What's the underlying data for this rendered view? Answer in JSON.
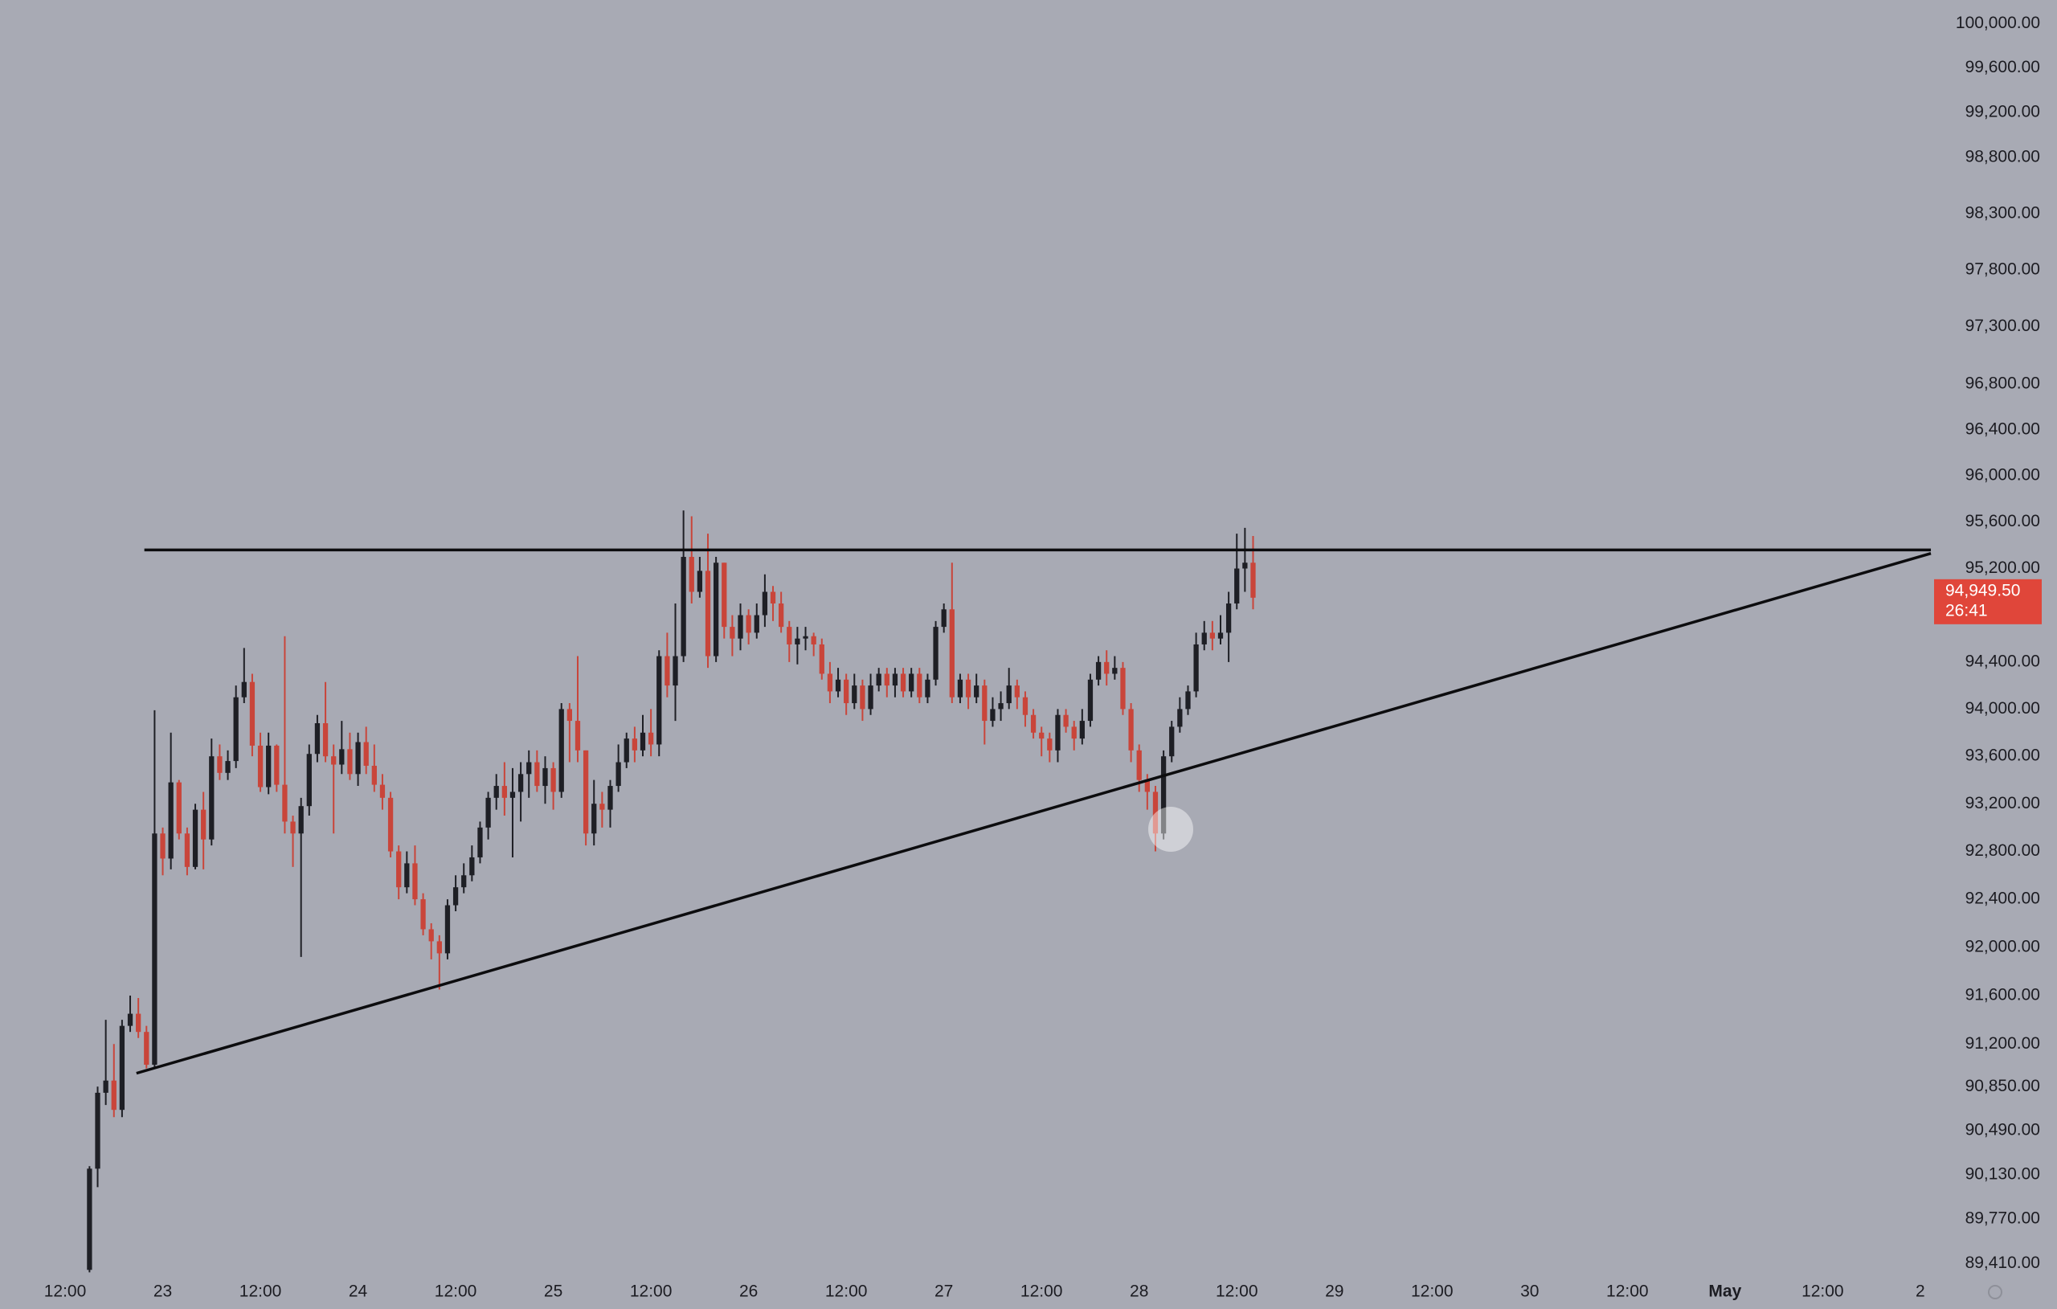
{
  "chart_data": {
    "type": "candlestick",
    "yscale": "log",
    "up_color": "#1e1f25",
    "down_color": "#c9453a",
    "line_color": "#0c0c0e",
    "background": "#a8aab4",
    "price_label": "94,949.50",
    "countdown": "26:41",
    "price_label_color": "#e0463a",
    "xlim": [
      -11,
      226
    ],
    "ylim": [
      89336,
      100213
    ],
    "xticks": [
      {
        "value": -3,
        "label": "12:00"
      },
      {
        "value": 9,
        "label": "23"
      },
      {
        "value": 21,
        "label": "12:00"
      },
      {
        "value": 33,
        "label": "24"
      },
      {
        "value": 45,
        "label": "12:00"
      },
      {
        "value": 57,
        "label": "25"
      },
      {
        "value": 69,
        "label": "12:00"
      },
      {
        "value": 81,
        "label": "26"
      },
      {
        "value": 93,
        "label": "12:00"
      },
      {
        "value": 105,
        "label": "27"
      },
      {
        "value": 117,
        "label": "12:00"
      },
      {
        "value": 129,
        "label": "28"
      },
      {
        "value": 141,
        "label": "12:00"
      },
      {
        "value": 153,
        "label": "29"
      },
      {
        "value": 165,
        "label": "12:00"
      },
      {
        "value": 177,
        "label": "30"
      },
      {
        "value": 189,
        "label": "12:00"
      },
      {
        "value": 201,
        "label": "May"
      },
      {
        "value": 213,
        "label": "12:00"
      },
      {
        "value": 225,
        "label": "2"
      }
    ],
    "yticks": [
      {
        "value": 100000,
        "label": "100,000.00"
      },
      {
        "value": 99600,
        "label": "99,600.00"
      },
      {
        "value": 99200,
        "label": "99,200.00"
      },
      {
        "value": 98800,
        "label": "98,800.00"
      },
      {
        "value": 98300,
        "label": "98,300.00"
      },
      {
        "value": 97800,
        "label": "97,800.00"
      },
      {
        "value": 97300,
        "label": "97,300.00"
      },
      {
        "value": 96800,
        "label": "96,800.00"
      },
      {
        "value": 96400,
        "label": "96,400.00"
      },
      {
        "value": 96000,
        "label": "96,000.00"
      },
      {
        "value": 95600,
        "label": "95,600.00"
      },
      {
        "value": 95200,
        "label": "95,200.00"
      },
      {
        "value": 94400,
        "label": "94,400.00"
      },
      {
        "value": 94000,
        "label": "94,000.00"
      },
      {
        "value": 93600,
        "label": "93,600.00"
      },
      {
        "value": 93200,
        "label": "93,200.00"
      },
      {
        "value": 92800,
        "label": "92,800.00"
      },
      {
        "value": 92400,
        "label": "92,400.00"
      },
      {
        "value": 92000,
        "label": "92,000.00"
      },
      {
        "value": 91600,
        "label": "91,600.00"
      },
      {
        "value": 91200,
        "label": "91,200.00"
      },
      {
        "value": 90850,
        "label": "90,850.00"
      },
      {
        "value": 90490,
        "label": "90,490.00"
      },
      {
        "value": 90130,
        "label": "90,130.00"
      },
      {
        "value": 89770,
        "label": "89,770.00"
      },
      {
        "value": 89410,
        "label": "89,410.00"
      }
    ],
    "trendlines": [
      {
        "x": [
          6.74,
          226.3
        ],
        "y": [
          95360,
          95360
        ]
      },
      {
        "x": [
          5.77,
          226.3
        ],
        "y": [
          90960,
          95330
        ]
      }
    ],
    "open": [
      89360,
      90180,
      90800,
      90900,
      90660,
      91350,
      91450,
      91300,
      91030,
      92950,
      92740,
      93380,
      92950,
      92670,
      93150,
      92900,
      93600,
      93460,
      93560,
      94100,
      94230,
      93690,
      93340,
      93690,
      93360,
      93050,
      92950,
      93180,
      93620,
      93880,
      93600,
      93530,
      93660,
      93450,
      93720,
      93520,
      93360,
      93250,
      92800,
      92500,
      92700,
      92400,
      92150,
      92050,
      91950,
      92350,
      92500,
      92600,
      92750,
      93000,
      93250,
      93350,
      93250,
      93300,
      93450,
      93550,
      93350,
      93500,
      93300,
      94000,
      93900,
      93650,
      92950,
      93200,
      93150,
      93350,
      93550,
      93750,
      93650,
      93800,
      93700,
      94450,
      94200,
      94450,
      95300,
      95000,
      95180,
      94450,
      95250,
      94700,
      94600,
      94800,
      94650,
      94800,
      95000,
      94900,
      94700,
      94550,
      94600,
      94620,
      94550,
      94300,
      94150,
      94250,
      94050,
      94200,
      94000,
      94200,
      94300,
      94200,
      94300,
      94150,
      94300,
      94100,
      94250,
      94700,
      94850,
      94100,
      94250,
      94100,
      94200,
      93900,
      94000,
      94050,
      94200,
      94100,
      93950,
      93800,
      93750,
      93650,
      93950,
      93850,
      93750,
      93900,
      94250,
      94400,
      94300,
      94350,
      94000,
      93650,
      93400,
      93300,
      92950,
      93600,
      93850,
      94000,
      94150,
      94550,
      94650,
      94600,
      94650,
      94900,
      95200,
      95250
    ],
    "high": [
      90200,
      90850,
      91400,
      91200,
      91400,
      91600,
      91580,
      91350,
      93990,
      93000,
      93800,
      93400,
      93000,
      93200,
      93300,
      93750,
      93700,
      93650,
      94200,
      94520,
      94300,
      93800,
      93800,
      93700,
      94620,
      93100,
      93250,
      93700,
      93950,
      94230,
      93700,
      93900,
      93800,
      93800,
      93850,
      93700,
      93450,
      93300,
      92850,
      92800,
      92850,
      92450,
      92200,
      92100,
      92400,
      92600,
      92700,
      92850,
      93050,
      93300,
      93450,
      93550,
      93500,
      93550,
      93650,
      93650,
      93600,
      93550,
      94050,
      94050,
      94450,
      93650,
      93400,
      93300,
      93400,
      93700,
      93800,
      93850,
      93950,
      94000,
      94500,
      94650,
      94900,
      95700,
      95650,
      95300,
      95500,
      95300,
      95250,
      94800,
      94900,
      94850,
      94900,
      95150,
      95050,
      95000,
      94750,
      94700,
      94700,
      94650,
      94600,
      94400,
      94350,
      94300,
      94300,
      94250,
      94300,
      94350,
      94350,
      94350,
      94350,
      94350,
      94350,
      94300,
      94750,
      94900,
      95250,
      94300,
      94300,
      94300,
      94250,
      94100,
      94150,
      94350,
      94250,
      94150,
      94000,
      93850,
      93800,
      94000,
      94000,
      93900,
      94000,
      94300,
      94450,
      94500,
      94450,
      94400,
      94050,
      93700,
      93450,
      93350,
      93650,
      93900,
      94100,
      94200,
      94650,
      94750,
      94750,
      94800,
      95000,
      95500,
      95550,
      95480
    ],
    "low": [
      89340,
      90030,
      90700,
      90600,
      90600,
      91300,
      91250,
      91000,
      91000,
      92600,
      92650,
      92900,
      92600,
      92650,
      92650,
      92850,
      93400,
      93400,
      93500,
      94050,
      93600,
      93300,
      93280,
      93300,
      92950,
      92670,
      91920,
      93100,
      93550,
      93550,
      92950,
      93450,
      93400,
      93350,
      93450,
      93300,
      93150,
      92750,
      92400,
      92450,
      92350,
      92100,
      91900,
      91650,
      91900,
      92300,
      92450,
      92550,
      92700,
      92900,
      93150,
      93100,
      92750,
      93050,
      93250,
      93300,
      93200,
      93150,
      93250,
      93550,
      93550,
      92850,
      92850,
      93000,
      93000,
      93300,
      93500,
      93550,
      93600,
      93600,
      93600,
      94100,
      93900,
      94400,
      94900,
      94950,
      94350,
      94400,
      94600,
      94450,
      94500,
      94550,
      94600,
      94700,
      94750,
      94650,
      94400,
      94380,
      94500,
      94450,
      94250,
      94050,
      94100,
      93950,
      94000,
      93900,
      93950,
      94150,
      94100,
      94100,
      94100,
      94100,
      94050,
      94050,
      94200,
      94650,
      94050,
      94050,
      94000,
      94050,
      93700,
      93850,
      93900,
      94000,
      94000,
      93850,
      93750,
      93600,
      93550,
      93550,
      93800,
      93650,
      93700,
      93850,
      94200,
      94200,
      94250,
      93950,
      93550,
      93300,
      93150,
      92800,
      92900,
      93550,
      93800,
      93950,
      94100,
      94500,
      94500,
      94550,
      94400,
      94850,
      95000,
      94850
    ],
    "close": [
      90180,
      90800,
      90900,
      90660,
      91350,
      91450,
      91300,
      91030,
      92950,
      92740,
      93380,
      92950,
      92670,
      93150,
      92900,
      93600,
      93460,
      93560,
      94100,
      94230,
      93690,
      93340,
      93690,
      93360,
      93050,
      92950,
      93180,
      93620,
      93880,
      93600,
      93530,
      93660,
      93450,
      93720,
      93520,
      93360,
      93250,
      92800,
      92500,
      92700,
      92400,
      92150,
      92050,
      91950,
      92350,
      92500,
      92600,
      92750,
      93000,
      93250,
      93350,
      93250,
      93300,
      93450,
      93550,
      93350,
      93500,
      93300,
      94000,
      93900,
      93650,
      92950,
      93200,
      93150,
      93350,
      93550,
      93750,
      93650,
      93800,
      93700,
      94450,
      94200,
      94450,
      95300,
      95000,
      95180,
      94450,
      95250,
      94700,
      94600,
      94800,
      94650,
      94800,
      95000,
      94900,
      94700,
      94550,
      94600,
      94620,
      94550,
      94300,
      94150,
      94250,
      94050,
      94200,
      94000,
      94200,
      94300,
      94200,
      94300,
      94150,
      94300,
      94100,
      94250,
      94700,
      94850,
      94100,
      94250,
      94100,
      94200,
      93900,
      94000,
      94050,
      94200,
      94100,
      93950,
      93800,
      93750,
      93650,
      93950,
      93850,
      93750,
      93900,
      94250,
      94400,
      94300,
      94350,
      94000,
      93650,
      93400,
      93300,
      92950,
      93600,
      93850,
      94000,
      94150,
      94550,
      94650,
      94600,
      94650,
      94900,
      95200,
      95250,
      94949.5
    ]
  }
}
